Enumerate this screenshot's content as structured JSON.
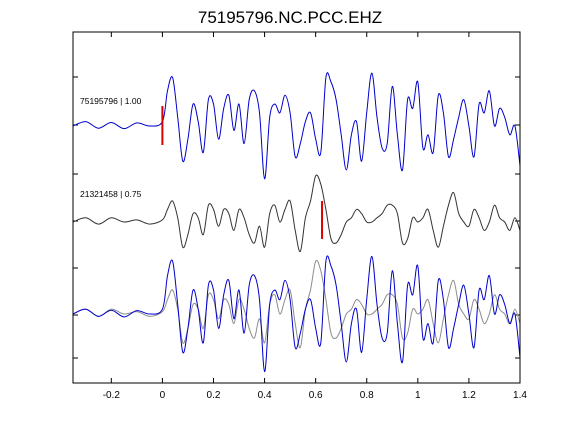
{
  "chart_data": {
    "type": "line",
    "title": "75195796.NC.PCC.EHZ",
    "xlabel": "",
    "ylabel": "",
    "xlim": [
      -0.35,
      1.4
    ],
    "xticks": [
      -0.2,
      0,
      0.2,
      0.4,
      0.6,
      0.8,
      1,
      1.2,
      1.4
    ],
    "xtick_labels": [
      "-0.2",
      "0",
      "0.2",
      "0.4",
      "0.6",
      "0.8",
      "1",
      "1.2",
      "1.4"
    ],
    "grid": false,
    "colors": {
      "blue": "#0000cc",
      "dark": "#333333",
      "gray": "#8c8c8c",
      "pick": "#dd0000"
    },
    "traces": [
      {
        "label": "75195796 | 1.00",
        "color": "#0000cc",
        "pick_time": 0.0,
        "x": [
          -0.35,
          -0.3,
          -0.25,
          -0.2,
          -0.15,
          -0.1,
          -0.05,
          0,
          0.02,
          0.04,
          0.06,
          0.08,
          0.1,
          0.12,
          0.14,
          0.16,
          0.18,
          0.2,
          0.22,
          0.24,
          0.26,
          0.28,
          0.3,
          0.32,
          0.34,
          0.36,
          0.38,
          0.4,
          0.42,
          0.44,
          0.46,
          0.48,
          0.5,
          0.52,
          0.54,
          0.56,
          0.58,
          0.6,
          0.62,
          0.64,
          0.66,
          0.68,
          0.7,
          0.72,
          0.74,
          0.76,
          0.78,
          0.8,
          0.82,
          0.84,
          0.86,
          0.88,
          0.9,
          0.92,
          0.94,
          0.96,
          0.98,
          1,
          1.02,
          1.04,
          1.06,
          1.08,
          1.1,
          1.12,
          1.14,
          1.16,
          1.18,
          1.2,
          1.22,
          1.24,
          1.26,
          1.28,
          1.3,
          1.32,
          1.34,
          1.36,
          1.38,
          1.4
        ],
        "y": [
          0.0,
          0.1,
          -0.05,
          0.08,
          -0.06,
          0.07,
          0.0,
          0.1,
          0.8,
          1.1,
          0.2,
          -0.8,
          -0.3,
          0.5,
          0.1,
          -0.6,
          0.6,
          0.5,
          -0.3,
          0.4,
          0.7,
          -0.1,
          0.5,
          -0.4,
          0.6,
          0.8,
          0.3,
          -1.2,
          0.2,
          0.5,
          0.3,
          0.7,
          0.3,
          -0.7,
          -0.4,
          0.1,
          0.3,
          -0.3,
          -0.6,
          1.1,
          1.0,
          0.6,
          -0.2,
          -1.0,
          -0.2,
          0.1,
          -0.8,
          0.3,
          1.2,
          0.2,
          -0.5,
          -0.4,
          0.9,
          -0.2,
          -1.0,
          0.6,
          0.4,
          1.0,
          -0.5,
          -0.2,
          -0.6,
          0.7,
          0.3,
          -0.7,
          -0.3,
          0.2,
          0.6,
          0.0,
          -0.7,
          0.5,
          0.3,
          0.8,
          0.0,
          0.4,
          0.2,
          -0.2,
          0.0,
          -0.9
        ]
      },
      {
        "label": "21321458 | 0.75",
        "color": "#333333",
        "pick_time": 0.625,
        "x": [
          -0.35,
          -0.3,
          -0.25,
          -0.2,
          -0.15,
          -0.1,
          -0.05,
          0,
          0.02,
          0.04,
          0.06,
          0.08,
          0.1,
          0.12,
          0.14,
          0.16,
          0.18,
          0.2,
          0.22,
          0.24,
          0.26,
          0.28,
          0.3,
          0.32,
          0.34,
          0.36,
          0.38,
          0.4,
          0.42,
          0.44,
          0.46,
          0.48,
          0.5,
          0.52,
          0.54,
          0.56,
          0.58,
          0.6,
          0.62,
          0.64,
          0.66,
          0.68,
          0.7,
          0.72,
          0.74,
          0.76,
          0.78,
          0.8,
          0.82,
          0.84,
          0.86,
          0.88,
          0.9,
          0.92,
          0.94,
          0.96,
          0.98,
          1,
          1.02,
          1.04,
          1.06,
          1.08,
          1.1,
          1.12,
          1.14,
          1.16,
          1.18,
          1.2,
          1.22,
          1.24,
          1.26,
          1.28,
          1.3,
          1.32,
          1.34,
          1.36,
          1.38,
          1.4
        ],
        "y": [
          0.0,
          0.1,
          -0.05,
          0.1,
          0.0,
          0.05,
          -0.05,
          0.05,
          0.3,
          0.5,
          0.1,
          -0.6,
          -0.3,
          0.2,
          0.1,
          -0.3,
          0.4,
          0.3,
          -0.1,
          0.3,
          0.2,
          -0.2,
          0.3,
          0.1,
          -0.3,
          -0.5,
          -0.1,
          -0.6,
          0.2,
          0.4,
          0.0,
          0.3,
          0.5,
          -0.2,
          -0.7,
          0.1,
          0.5,
          1.1,
          0.9,
          0.3,
          -0.4,
          -0.5,
          -0.3,
          0.0,
          0.1,
          0.3,
          0.2,
          0.0,
          0.0,
          0.1,
          0.2,
          0.4,
          0.4,
          0.2,
          -0.5,
          -0.4,
          0.1,
          0.0,
          0.1,
          0.3,
          -0.2,
          -0.6,
          -0.1,
          0.4,
          0.7,
          0.2,
          0.0,
          -0.1,
          0.3,
          0.1,
          -0.2,
          0.0,
          0.4,
          0.1,
          0.0,
          -0.2,
          0.1,
          -0.2
        ]
      }
    ],
    "overlay": {
      "description_colors": [
        "#0000cc",
        "#8c8c8c"
      ]
    }
  }
}
